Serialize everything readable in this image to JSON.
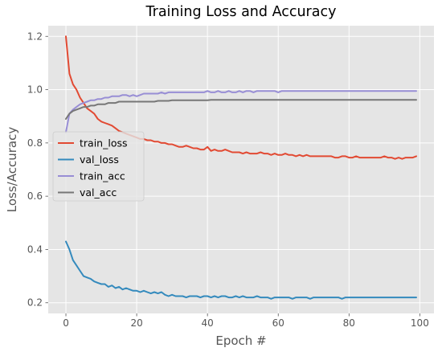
{
  "chart_data": {
    "type": "line",
    "title": "Training Loss and Accuracy",
    "xlabel": "Epoch #",
    "ylabel": "Loss/Accuracy",
    "xlim": [
      -5,
      104
    ],
    "ylim": [
      0.16,
      1.24
    ],
    "xticks": [
      0,
      20,
      40,
      60,
      80,
      100
    ],
    "yticks": [
      0.2,
      0.4,
      0.6,
      0.8,
      1.0,
      1.2
    ],
    "xtick_labels": [
      "0",
      "20",
      "40",
      "60",
      "80",
      "100"
    ],
    "ytick_labels": [
      "0.2",
      "0.4",
      "0.6",
      "0.8",
      "1.0",
      "1.2"
    ],
    "grid": true,
    "style": "ggplot",
    "legend_position": "center-left",
    "x": [
      0,
      1,
      2,
      3,
      4,
      5,
      6,
      7,
      8,
      9,
      10,
      11,
      12,
      13,
      14,
      15,
      16,
      17,
      18,
      19,
      20,
      21,
      22,
      23,
      24,
      25,
      26,
      27,
      28,
      29,
      30,
      31,
      32,
      33,
      34,
      35,
      36,
      37,
      38,
      39,
      40,
      41,
      42,
      43,
      44,
      45,
      46,
      47,
      48,
      49,
      50,
      51,
      52,
      53,
      54,
      55,
      56,
      57,
      58,
      59,
      60,
      61,
      62,
      63,
      64,
      65,
      66,
      67,
      68,
      69,
      70,
      71,
      72,
      73,
      74,
      75,
      76,
      77,
      78,
      79,
      80,
      81,
      82,
      83,
      84,
      85,
      86,
      87,
      88,
      89,
      90,
      91,
      92,
      93,
      94,
      95,
      96,
      97,
      98,
      99
    ],
    "series": [
      {
        "name": "train_loss",
        "color": "#e24a33",
        "values": [
          1.2,
          1.06,
          1.02,
          1.0,
          0.97,
          0.95,
          0.93,
          0.92,
          0.91,
          0.89,
          0.88,
          0.875,
          0.87,
          0.865,
          0.855,
          0.845,
          0.84,
          0.835,
          0.83,
          0.825,
          0.82,
          0.815,
          0.815,
          0.81,
          0.81,
          0.805,
          0.805,
          0.8,
          0.8,
          0.795,
          0.795,
          0.79,
          0.785,
          0.785,
          0.79,
          0.785,
          0.78,
          0.78,
          0.775,
          0.775,
          0.785,
          0.77,
          0.775,
          0.77,
          0.77,
          0.775,
          0.77,
          0.765,
          0.765,
          0.765,
          0.76,
          0.765,
          0.76,
          0.76,
          0.76,
          0.765,
          0.76,
          0.76,
          0.755,
          0.76,
          0.755,
          0.755,
          0.76,
          0.755,
          0.755,
          0.75,
          0.755,
          0.75,
          0.755,
          0.75,
          0.75,
          0.75,
          0.75,
          0.75,
          0.75,
          0.75,
          0.745,
          0.745,
          0.75,
          0.75,
          0.745,
          0.745,
          0.75,
          0.745,
          0.745,
          0.745,
          0.745,
          0.745,
          0.745,
          0.745,
          0.75,
          0.745,
          0.745,
          0.74,
          0.745,
          0.74,
          0.745,
          0.745,
          0.745,
          0.75
        ]
      },
      {
        "name": "val_loss",
        "color": "#348abd",
        "values": [
          0.43,
          0.4,
          0.36,
          0.34,
          0.32,
          0.3,
          0.295,
          0.29,
          0.28,
          0.275,
          0.27,
          0.27,
          0.26,
          0.265,
          0.255,
          0.26,
          0.25,
          0.255,
          0.25,
          0.245,
          0.245,
          0.24,
          0.245,
          0.24,
          0.235,
          0.24,
          0.235,
          0.24,
          0.23,
          0.225,
          0.23,
          0.225,
          0.225,
          0.225,
          0.22,
          0.225,
          0.225,
          0.225,
          0.22,
          0.225,
          0.225,
          0.22,
          0.225,
          0.22,
          0.225,
          0.225,
          0.22,
          0.22,
          0.225,
          0.22,
          0.225,
          0.22,
          0.22,
          0.22,
          0.225,
          0.22,
          0.22,
          0.22,
          0.215,
          0.22,
          0.22,
          0.22,
          0.22,
          0.22,
          0.215,
          0.22,
          0.22,
          0.22,
          0.22,
          0.215,
          0.22,
          0.22,
          0.22,
          0.22,
          0.22,
          0.22,
          0.22,
          0.22,
          0.215,
          0.22,
          0.22,
          0.22,
          0.22,
          0.22,
          0.22,
          0.22,
          0.22,
          0.22,
          0.22,
          0.22,
          0.22,
          0.22,
          0.22,
          0.22,
          0.22,
          0.22,
          0.22,
          0.22,
          0.22,
          0.22
        ]
      },
      {
        "name": "train_acc",
        "color": "#988ed5",
        "values": [
          0.84,
          0.91,
          0.925,
          0.935,
          0.945,
          0.95,
          0.955,
          0.96,
          0.96,
          0.965,
          0.965,
          0.97,
          0.97,
          0.975,
          0.975,
          0.975,
          0.98,
          0.98,
          0.975,
          0.98,
          0.975,
          0.98,
          0.985,
          0.985,
          0.985,
          0.985,
          0.985,
          0.99,
          0.985,
          0.99,
          0.99,
          0.99,
          0.99,
          0.99,
          0.99,
          0.99,
          0.99,
          0.99,
          0.99,
          0.99,
          0.995,
          0.99,
          0.99,
          0.995,
          0.99,
          0.99,
          0.995,
          0.99,
          0.99,
          0.995,
          0.99,
          0.995,
          0.995,
          0.99,
          0.995,
          0.995,
          0.995,
          0.995,
          0.995,
          0.995,
          0.99,
          0.995,
          0.995,
          0.995,
          0.995,
          0.995,
          0.995,
          0.995,
          0.995,
          0.995,
          0.995,
          0.995,
          0.995,
          0.995,
          0.995,
          0.995,
          0.995,
          0.995,
          0.995,
          0.995,
          0.995,
          0.995,
          0.995,
          0.995,
          0.995,
          0.995,
          0.995,
          0.995,
          0.995,
          0.995,
          0.995,
          0.995,
          0.995,
          0.995,
          0.995,
          0.995,
          0.995,
          0.995,
          0.995,
          0.995
        ]
      },
      {
        "name": "val_acc",
        "color": "#777777",
        "values": [
          0.89,
          0.91,
          0.92,
          0.925,
          0.93,
          0.935,
          0.935,
          0.94,
          0.94,
          0.945,
          0.945,
          0.945,
          0.95,
          0.95,
          0.95,
          0.955,
          0.955,
          0.955,
          0.955,
          0.955,
          0.955,
          0.955,
          0.955,
          0.955,
          0.955,
          0.955,
          0.958,
          0.958,
          0.958,
          0.958,
          0.96,
          0.96,
          0.96,
          0.96,
          0.96,
          0.96,
          0.96,
          0.96,
          0.96,
          0.96,
          0.96,
          0.962,
          0.962,
          0.962,
          0.962,
          0.962,
          0.962,
          0.962,
          0.962,
          0.962,
          0.962,
          0.962,
          0.962,
          0.962,
          0.962,
          0.962,
          0.962,
          0.962,
          0.962,
          0.962,
          0.962,
          0.962,
          0.962,
          0.962,
          0.962,
          0.962,
          0.962,
          0.962,
          0.962,
          0.962,
          0.962,
          0.962,
          0.962,
          0.962,
          0.962,
          0.962,
          0.962,
          0.962,
          0.962,
          0.962,
          0.962,
          0.962,
          0.962,
          0.962,
          0.962,
          0.962,
          0.962,
          0.962,
          0.962,
          0.962,
          0.962,
          0.962,
          0.962,
          0.962,
          0.962,
          0.962,
          0.962,
          0.962,
          0.962,
          0.962
        ]
      }
    ]
  }
}
